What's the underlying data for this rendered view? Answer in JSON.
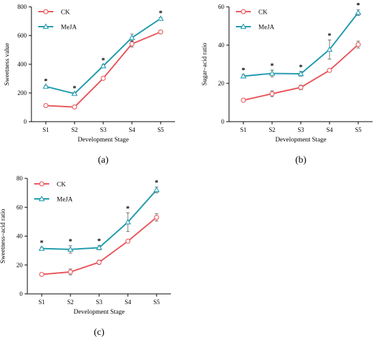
{
  "colors": {
    "CK": "#e8555a",
    "MeJA": "#1f9aad",
    "axis": "#000000"
  },
  "marker_icons": {
    "CK": "circle-marker",
    "MeJA": "triangle-marker"
  },
  "chart_data": [
    {
      "type": "line",
      "panel_label": "(a)",
      "categories": [
        "S1",
        "S2",
        "S3",
        "S4",
        "S5"
      ],
      "xlabel": "Development Stage",
      "ylabel": "Sweetness value",
      "ylim": [
        0,
        800
      ],
      "yticks": [
        0,
        200,
        400,
        600,
        800
      ],
      "legend": "top-left",
      "grid": false,
      "series": [
        {
          "name": "CK",
          "values": [
            112,
            102,
            302,
            542,
            625
          ],
          "errors": [
            5,
            4,
            6,
            22,
            10
          ]
        },
        {
          "name": "MeJA",
          "values": [
            245,
            195,
            388,
            585,
            718
          ],
          "errors": [
            8,
            8,
            10,
            25,
            8
          ]
        }
      ],
      "significance": [
        "*",
        "*",
        "*",
        "",
        "*"
      ]
    },
    {
      "type": "line",
      "panel_label": "(b)",
      "categories": [
        "S1",
        "S2",
        "S3",
        "S4",
        "S5"
      ],
      "xlabel": "Development Stage",
      "ylabel": "Sugar–acid ratio",
      "ylim": [
        0,
        60
      ],
      "yticks": [
        0,
        20,
        40,
        60
      ],
      "legend": "top-left",
      "grid": false,
      "series": [
        {
          "name": "CK",
          "values": [
            11.2,
            14.6,
            17.9,
            26.8,
            40.3
          ],
          "errors": [
            0.5,
            1.5,
            1.2,
            0.6,
            1.8
          ]
        },
        {
          "name": "MeJA",
          "values": [
            23.8,
            25.2,
            25.0,
            37.7,
            57.0
          ],
          "errors": [
            0.8,
            1.8,
            1.2,
            5.0,
            1.5
          ]
        }
      ],
      "significance": [
        "*",
        "*",
        "*",
        "*",
        "*"
      ]
    },
    {
      "type": "line",
      "panel_label": "(c)",
      "categories": [
        "S1",
        "S2",
        "S3",
        "S4",
        "S5"
      ],
      "xlabel": "Development Stage",
      "ylabel": "Sweetness–acid ratio",
      "ylim": [
        0,
        80
      ],
      "yticks": [
        0,
        20,
        40,
        60,
        80
      ],
      "legend": "top-left",
      "grid": false,
      "series": [
        {
          "name": "CK",
          "values": [
            13.5,
            15.2,
            21.9,
            36.5,
            53.0
          ],
          "errors": [
            0.6,
            2.0,
            1.5,
            0.6,
            2.5
          ]
        },
        {
          "name": "MeJA",
          "values": [
            31.4,
            30.8,
            32.0,
            49.7,
            72.0
          ],
          "errors": [
            1.0,
            2.5,
            1.5,
            6.5,
            2.0
          ]
        }
      ],
      "significance": [
        "*",
        "*",
        "*",
        "*",
        "*"
      ]
    }
  ]
}
